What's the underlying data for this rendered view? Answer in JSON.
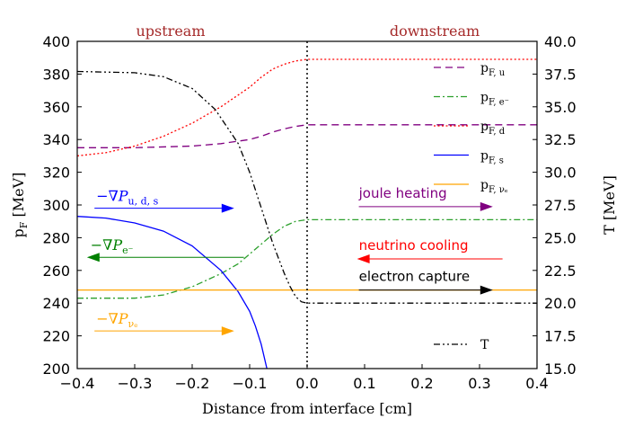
{
  "chart_data": {
    "type": "line",
    "title": "",
    "xlabel": "Distance from interface [cm]",
    "ylabel": "p_F [MeV]",
    "y2label": "T [MeV]",
    "xlim": [
      -0.4,
      0.4
    ],
    "ylim": [
      200,
      400
    ],
    "y2lim": [
      15.0,
      40.0
    ],
    "xticks": [
      "−0.4",
      "−0.3",
      "−0.2",
      "−0.1",
      "0.0",
      "0.1",
      "0.2",
      "0.3",
      "0.4"
    ],
    "yticks": [
      "200",
      "220",
      "240",
      "260",
      "280",
      "300",
      "320",
      "340",
      "360",
      "380",
      "400"
    ],
    "y2ticks": [
      "15.0",
      "17.5",
      "20.0",
      "22.5",
      "25.0",
      "27.5",
      "30.0",
      "32.5",
      "35.0",
      "37.5",
      "40.0"
    ],
    "interface_x": 0.0,
    "regions": {
      "upstream": "upstream",
      "downstream": "downstream",
      "color": "#a52a2a"
    },
    "series": [
      {
        "name": "p_F,u",
        "label_main": "p",
        "label_sub": "F, u",
        "color": "#800080",
        "style": "dashed",
        "axis": "left",
        "x": [
          -0.4,
          -0.3,
          -0.2,
          -0.15,
          -0.1,
          -0.08,
          -0.06,
          -0.04,
          -0.02,
          0.0,
          0.1,
          0.2,
          0.3,
          0.4
        ],
        "y": [
          335,
          335,
          336,
          337.5,
          340,
          342,
          344.5,
          346.5,
          348,
          349,
          349,
          349,
          349,
          349
        ]
      },
      {
        "name": "p_F,e-",
        "label_main": "p",
        "label_sub": "F, e⁻",
        "color": "#2ca02c",
        "style": "dashdot",
        "axis": "left",
        "x": [
          -0.4,
          -0.3,
          -0.25,
          -0.2,
          -0.15,
          -0.12,
          -0.1,
          -0.08,
          -0.06,
          -0.04,
          -0.02,
          0.0,
          0.1,
          0.2,
          0.3,
          0.4
        ],
        "y": [
          243,
          243,
          245,
          250,
          258,
          264,
          270,
          276,
          282,
          287,
          290,
          291,
          291,
          291,
          291,
          291
        ]
      },
      {
        "name": "p_F,d",
        "label_main": "p",
        "label_sub": "F, d",
        "color": "#ff0000",
        "style": "dotted",
        "axis": "left",
        "x": [
          -0.4,
          -0.35,
          -0.3,
          -0.25,
          -0.2,
          -0.15,
          -0.1,
          -0.08,
          -0.06,
          -0.04,
          -0.02,
          0.0,
          0.1,
          0.2,
          0.3,
          0.4
        ],
        "y": [
          330,
          332,
          336,
          342,
          350,
          360,
          372,
          378,
          383,
          386,
          388,
          389,
          389,
          389,
          389,
          389
        ]
      },
      {
        "name": "p_F,s",
        "label_main": "p",
        "label_sub": "F, s",
        "color": "#0000ff",
        "style": "solid",
        "axis": "left",
        "x": [
          -0.4,
          -0.35,
          -0.3,
          -0.25,
          -0.2,
          -0.15,
          -0.12,
          -0.1,
          -0.09,
          -0.08,
          -0.07
        ],
        "y": [
          293,
          292,
          289,
          284,
          275,
          260,
          247,
          235,
          226,
          215,
          200
        ]
      },
      {
        "name": "p_F,ν_e",
        "label_main": "p",
        "label_sub": "F, νₑ",
        "color": "#ffa500",
        "style": "solid",
        "axis": "left",
        "x": [
          -0.4,
          0.4
        ],
        "y": [
          248,
          248
        ]
      },
      {
        "name": "T",
        "label_main": "T",
        "label_sub": "",
        "color": "#000000",
        "style": "dashdotdot",
        "axis": "right",
        "x": [
          -0.4,
          -0.3,
          -0.25,
          -0.2,
          -0.16,
          -0.12,
          -0.1,
          -0.08,
          -0.06,
          -0.04,
          -0.03,
          -0.02,
          -0.01,
          0.0,
          0.1,
          0.2,
          0.3,
          0.4
        ],
        "y": [
          37.7,
          37.6,
          37.3,
          36.4,
          34.8,
          32.2,
          30.0,
          27.3,
          24.6,
          22.3,
          21.3,
          20.5,
          20.1,
          20.0,
          20.0,
          20.0,
          20.0,
          20.0
        ]
      }
    ],
    "annotations": [
      {
        "key": "grad_uds",
        "text": "−∇P",
        "sub": "u, d, s",
        "color": "#0000ff",
        "arrow": "right",
        "x_from": -0.37,
        "x_to": -0.13,
        "y": 298
      },
      {
        "key": "grad_e",
        "text": "−∇P",
        "sub": "e⁻",
        "color": "#008000",
        "arrow": "left",
        "x_from": -0.11,
        "x_to": -0.38,
        "y": 268
      },
      {
        "key": "grad_nu",
        "text": "−∇P",
        "sub": "νₑ",
        "color": "#ffa500",
        "arrow": "right",
        "x_from": -0.37,
        "x_to": -0.13,
        "y": 223
      },
      {
        "key": "joule",
        "text": "joule heating",
        "sub": "",
        "color": "#800080",
        "arrow": "right",
        "x_from": 0.09,
        "x_to": 0.32,
        "y": 299
      },
      {
        "key": "neutrino",
        "text": "neutrino cooling",
        "sub": "",
        "color": "#ff0000",
        "arrow": "left",
        "x_from": 0.34,
        "x_to": 0.09,
        "y": 267
      },
      {
        "key": "capture",
        "text": "electron capture",
        "sub": "",
        "color": "#000000",
        "arrow": "right",
        "x_from": 0.09,
        "x_to": 0.32,
        "y": 248
      }
    ]
  }
}
